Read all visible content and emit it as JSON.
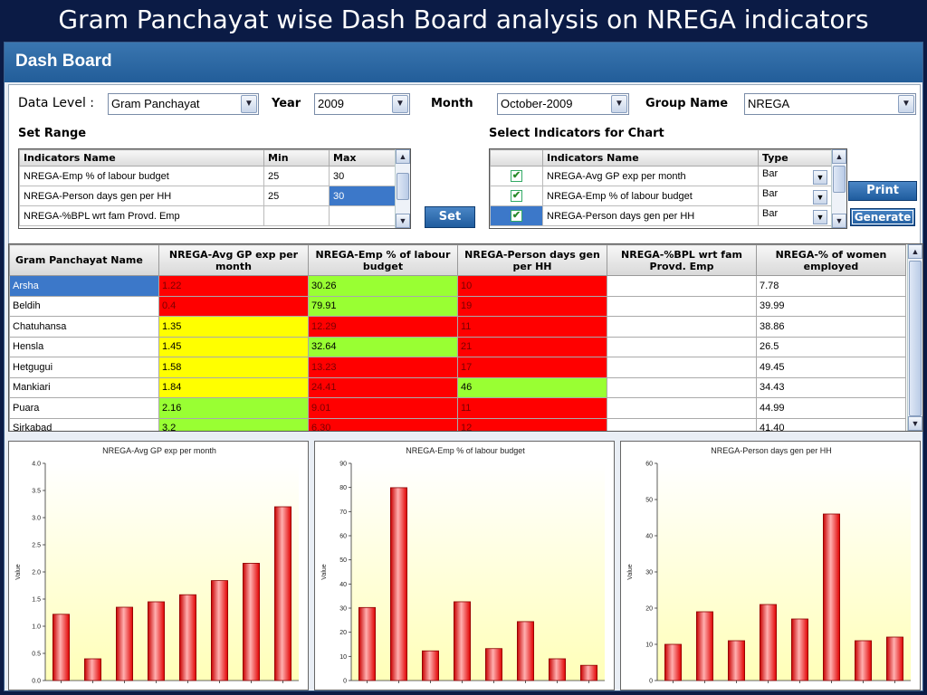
{
  "slide_title": "Gram Panchayat wise Dash Board analysis on NREGA indicators",
  "app_header": "Dash Board",
  "filters": {
    "data_level_label": "Data Level :",
    "data_level_value": "Gram Panchayat",
    "year_label": "Year",
    "year_value": "2009",
    "month_label": "Month",
    "month_value": "October-2009",
    "group_label": "Group Name",
    "group_value": "NREGA"
  },
  "set_range": {
    "title": "Set Range",
    "headers": [
      "Indicators Name",
      "Min",
      "Max"
    ],
    "rows": [
      {
        "name": "NREGA-Emp % of labour budget",
        "min": "25",
        "max": "30"
      },
      {
        "name": "NREGA-Person days gen per HH",
        "min": "25",
        "max": "30"
      },
      {
        "name": "NREGA-%BPL wrt fam Provd. Emp",
        "min": "",
        "max": ""
      }
    ],
    "set_button": "Set"
  },
  "select_indicators": {
    "title": "Select Indicators for Chart",
    "headers": [
      "",
      "Indicators Name",
      "Type"
    ],
    "rows": [
      {
        "checked": "✔",
        "name": "NREGA-Avg GP exp per month",
        "type": "Bar"
      },
      {
        "checked": "✔",
        "name": "NREGA-Emp % of labour budget",
        "type": "Bar"
      },
      {
        "checked": "✔",
        "name": "NREGA-Person days gen per HH",
        "type": "Bar"
      }
    ],
    "print_button": "Print",
    "generate_button": "Generate"
  },
  "main_table": {
    "headers": [
      "Gram Panchayat Name",
      "NREGA-Avg GP exp per month",
      "NREGA-Emp % of labour budget",
      "NREGA-Person days gen per HH",
      "NREGA-%BPL wrt fam Provd. Emp",
      "NREGA-% of women employed"
    ],
    "rows": [
      {
        "name": "Arsha",
        "v": [
          "1.22",
          "30.26",
          "10",
          "",
          "7.78"
        ],
        "c": [
          "red",
          "green",
          "red",
          "white",
          "white"
        ]
      },
      {
        "name": "Beldih",
        "v": [
          "0.4",
          "79.91",
          "19",
          "",
          "39.99"
        ],
        "c": [
          "red",
          "green",
          "red",
          "white",
          "white"
        ]
      },
      {
        "name": "Chatuhansa",
        "v": [
          "1.35",
          "12.29",
          "11",
          "",
          "38.86"
        ],
        "c": [
          "yellow",
          "red",
          "red",
          "white",
          "white"
        ]
      },
      {
        "name": "Hensla",
        "v": [
          "1.45",
          "32.64",
          "21",
          "",
          "26.5"
        ],
        "c": [
          "yellow",
          "green",
          "red",
          "white",
          "white"
        ]
      },
      {
        "name": "Hetgugui",
        "v": [
          "1.58",
          "13.23",
          "17",
          "",
          "49.45"
        ],
        "c": [
          "yellow",
          "red",
          "red",
          "white",
          "white"
        ]
      },
      {
        "name": "Mankiari",
        "v": [
          "1.84",
          "24.41",
          "46",
          "",
          "34.43"
        ],
        "c": [
          "yellow",
          "red",
          "green",
          "white",
          "white"
        ]
      },
      {
        "name": "Puara",
        "v": [
          "2.16",
          "9.01",
          "11",
          "",
          "44.99"
        ],
        "c": [
          "green",
          "red",
          "red",
          "white",
          "white"
        ]
      },
      {
        "name": "Sirkabad",
        "v": [
          "3.2",
          "6.30",
          "12",
          "",
          "41.40"
        ],
        "c": [
          "green",
          "red",
          "red",
          "white",
          "white"
        ]
      }
    ]
  },
  "colors": {
    "red": "#ff0000",
    "green": "#99ff33",
    "yellow": "#ffff00",
    "bar": "#ff2a2a",
    "accent": "#225d99"
  },
  "chart_data": [
    {
      "type": "bar",
      "title": "NREGA-Avg GP exp per month",
      "ylabel": "Value",
      "values": [
        1.22,
        0.4,
        1.35,
        1.45,
        1.58,
        1.84,
        2.16,
        3.2
      ],
      "ylim": [
        0,
        4.0
      ],
      "yticks": [
        "0.0",
        "0.5",
        "1.0",
        "1.5",
        "2.0",
        "2.5",
        "3.0",
        "3.5",
        "4.0"
      ]
    },
    {
      "type": "bar",
      "title": "NREGA-Emp % of labour budget",
      "ylabel": "Value",
      "values": [
        30.26,
        79.91,
        12.29,
        32.64,
        13.23,
        24.41,
        9.01,
        6.3
      ],
      "ylim": [
        0,
        90
      ],
      "yticks": [
        "0",
        "10",
        "20",
        "30",
        "40",
        "50",
        "60",
        "70",
        "80",
        "90"
      ]
    },
    {
      "type": "bar",
      "title": "NREGA-Person days gen per HH",
      "ylabel": "Value",
      "values": [
        10,
        19,
        11,
        21,
        17,
        46,
        11,
        12
      ],
      "ylim": [
        0,
        60
      ],
      "yticks": [
        "0",
        "10",
        "20",
        "30",
        "40",
        "50",
        "60"
      ]
    }
  ]
}
